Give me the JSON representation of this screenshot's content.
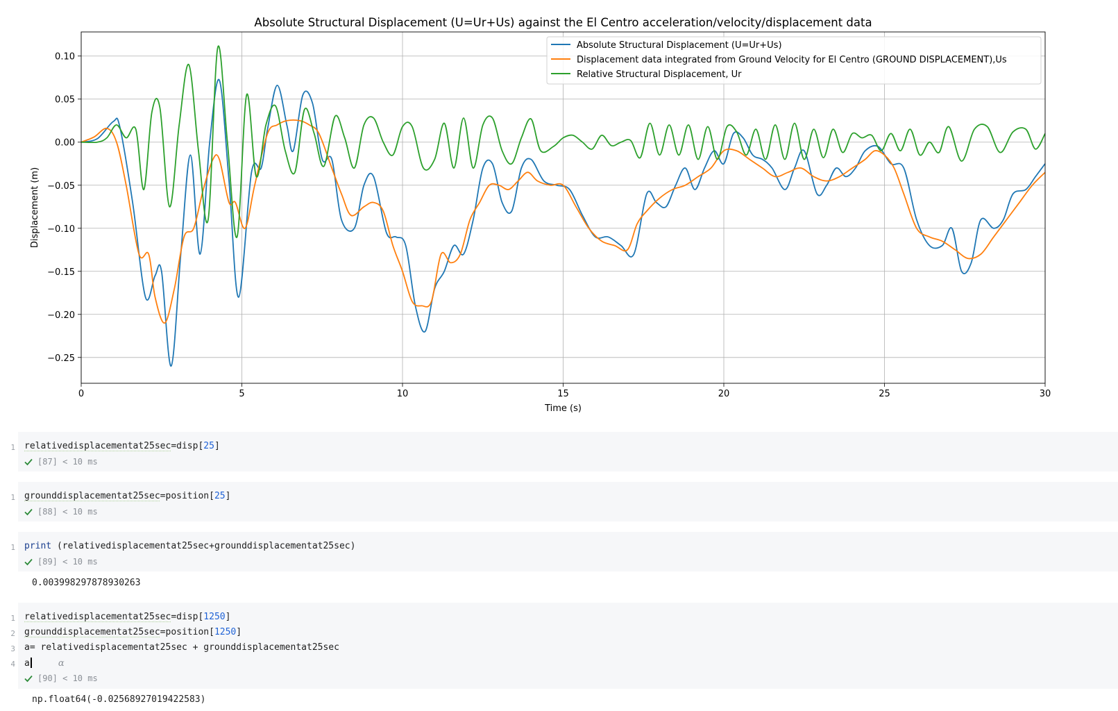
{
  "chart_data": {
    "type": "line",
    "title": "Absolute Structural Displacement (U=Ur+Us) against the El Centro acceleration/velocity/displacement data",
    "xlabel": "Time (s)",
    "ylabel": "Displacement (m)",
    "xlim": [
      0,
      30
    ],
    "ylim": [
      -0.28,
      0.128
    ],
    "xticks": [
      0,
      5,
      10,
      15,
      20,
      25,
      30
    ],
    "xtick_labels": [
      "0",
      "5",
      "10",
      "15",
      "20",
      "25",
      "30"
    ],
    "yticks": [
      0.1,
      0.05,
      0.0,
      -0.05,
      -0.1,
      -0.15,
      -0.2,
      -0.25
    ],
    "ytick_labels": [
      "0.10",
      "0.05",
      "0.00",
      "−0.05",
      "−0.10",
      "−0.15",
      "−0.20",
      "−0.25"
    ],
    "grid": true,
    "legend_position": "upper right",
    "series": [
      {
        "name": "Absolute Structural Displacement (U=Ur+Us)",
        "color": "#1f77b4",
        "x": [
          0,
          0.5,
          1.0,
          1.2,
          1.6,
          2.0,
          2.3,
          2.5,
          2.8,
          3.1,
          3.4,
          3.7,
          4.0,
          4.3,
          4.6,
          4.9,
          5.3,
          5.6,
          5.8,
          6.1,
          6.4,
          6.6,
          6.9,
          7.2,
          7.5,
          7.8,
          8.1,
          8.5,
          8.8,
          9.1,
          9.5,
          9.8,
          10.1,
          10.4,
          10.7,
          11.0,
          11.3,
          11.6,
          11.9,
          12.2,
          12.5,
          12.8,
          13.1,
          13.4,
          13.7,
          14.0,
          14.4,
          14.8,
          15.2,
          15.6,
          16.0,
          16.4,
          16.8,
          17.2,
          17.6,
          17.9,
          18.2,
          18.5,
          18.8,
          19.1,
          19.4,
          19.7,
          20.0,
          20.3,
          20.6,
          20.9,
          21.2,
          21.5,
          21.9,
          22.2,
          22.5,
          22.9,
          23.2,
          23.5,
          23.8,
          24.1,
          24.4,
          24.8,
          25.2,
          25.6,
          26.0,
          26.4,
          26.8,
          27.1,
          27.4,
          27.7,
          28.0,
          28.4,
          28.7,
          29.0,
          29.4,
          29.7,
          30.0
        ],
        "values": [
          0,
          0.004,
          0.024,
          0.018,
          -0.07,
          -0.18,
          -0.155,
          -0.15,
          -0.26,
          -0.13,
          -0.015,
          -0.13,
          0.0,
          0.072,
          -0.045,
          -0.18,
          -0.035,
          -0.03,
          0.015,
          0.066,
          0.02,
          -0.01,
          0.055,
          0.045,
          -0.02,
          -0.02,
          -0.09,
          -0.1,
          -0.05,
          -0.04,
          -0.105,
          -0.11,
          -0.12,
          -0.19,
          -0.22,
          -0.17,
          -0.15,
          -0.12,
          -0.13,
          -0.09,
          -0.03,
          -0.025,
          -0.07,
          -0.08,
          -0.03,
          -0.02,
          -0.045,
          -0.05,
          -0.055,
          -0.085,
          -0.11,
          -0.11,
          -0.12,
          -0.13,
          -0.06,
          -0.07,
          -0.075,
          -0.05,
          -0.03,
          -0.055,
          -0.03,
          -0.01,
          -0.025,
          0.01,
          0.005,
          -0.015,
          -0.02,
          -0.03,
          -0.055,
          -0.03,
          -0.01,
          -0.06,
          -0.05,
          -0.03,
          -0.04,
          -0.03,
          -0.01,
          -0.005,
          -0.025,
          -0.03,
          -0.09,
          -0.12,
          -0.12,
          -0.1,
          -0.15,
          -0.14,
          -0.09,
          -0.1,
          -0.09,
          -0.06,
          -0.055,
          -0.04,
          -0.025
        ]
      },
      {
        "name": "Displacement data integrated from Ground Velocity for El Centro (GROUND DISPLACEMENT),Us",
        "color": "#ff7f0e",
        "x": [
          0,
          0.4,
          0.8,
          1.1,
          1.4,
          1.8,
          2.1,
          2.3,
          2.6,
          2.9,
          3.2,
          3.5,
          3.8,
          4.1,
          4.3,
          4.6,
          4.8,
          5.1,
          5.4,
          5.8,
          6.1,
          6.4,
          6.8,
          7.1,
          7.4,
          7.8,
          8.1,
          8.4,
          8.8,
          9.1,
          9.4,
          9.7,
          10.0,
          10.3,
          10.6,
          10.9,
          11.2,
          11.5,
          11.8,
          12.1,
          12.4,
          12.7,
          13.0,
          13.3,
          13.6,
          13.9,
          14.2,
          14.6,
          15.0,
          15.4,
          15.8,
          16.2,
          16.6,
          17.0,
          17.3,
          17.6,
          18.0,
          18.4,
          18.8,
          19.2,
          19.6,
          20.0,
          20.4,
          20.8,
          21.2,
          21.6,
          22.0,
          22.4,
          22.8,
          23.2,
          23.6,
          24.0,
          24.4,
          24.7,
          25.0,
          25.3,
          25.6,
          26.0,
          26.4,
          26.8,
          27.2,
          27.6,
          28.0,
          28.4,
          28.8,
          29.2,
          29.6,
          30.0
        ],
        "values": [
          0,
          0.006,
          0.016,
          0.0,
          -0.05,
          -0.13,
          -0.13,
          -0.18,
          -0.21,
          -0.17,
          -0.11,
          -0.1,
          -0.055,
          -0.02,
          -0.02,
          -0.07,
          -0.07,
          -0.1,
          -0.05,
          0.01,
          0.02,
          0.025,
          0.025,
          0.02,
          0.01,
          -0.03,
          -0.06,
          -0.085,
          -0.075,
          -0.07,
          -0.08,
          -0.12,
          -0.15,
          -0.185,
          -0.19,
          -0.185,
          -0.13,
          -0.14,
          -0.13,
          -0.09,
          -0.07,
          -0.05,
          -0.05,
          -0.055,
          -0.045,
          -0.035,
          -0.045,
          -0.05,
          -0.05,
          -0.075,
          -0.1,
          -0.115,
          -0.12,
          -0.125,
          -0.095,
          -0.08,
          -0.065,
          -0.055,
          -0.05,
          -0.04,
          -0.03,
          -0.01,
          -0.01,
          -0.02,
          -0.03,
          -0.04,
          -0.035,
          -0.03,
          -0.04,
          -0.045,
          -0.04,
          -0.03,
          -0.02,
          -0.01,
          -0.015,
          -0.03,
          -0.06,
          -0.1,
          -0.11,
          -0.115,
          -0.125,
          -0.135,
          -0.13,
          -0.11,
          -0.09,
          -0.07,
          -0.05,
          -0.035
        ]
      },
      {
        "name": "Relative Structural Displacement, Ur",
        "color": "#2ca02c",
        "x": [
          0,
          0.5,
          0.8,
          1.1,
          1.4,
          1.7,
          1.95,
          2.2,
          2.45,
          2.75,
          3.05,
          3.35,
          3.65,
          3.95,
          4.25,
          4.55,
          4.85,
          5.15,
          5.45,
          5.75,
          6.05,
          6.35,
          6.65,
          6.95,
          7.25,
          7.55,
          7.9,
          8.2,
          8.5,
          8.8,
          9.1,
          9.4,
          9.7,
          10.0,
          10.3,
          10.65,
          11.0,
          11.3,
          11.6,
          11.9,
          12.2,
          12.5,
          12.8,
          13.1,
          13.4,
          13.7,
          14.0,
          14.3,
          14.7,
          15.0,
          15.3,
          15.6,
          15.9,
          16.2,
          16.5,
          16.8,
          17.1,
          17.4,
          17.7,
          18.0,
          18.3,
          18.6,
          18.9,
          19.2,
          19.5,
          19.8,
          20.1,
          20.4,
          20.7,
          21.0,
          21.3,
          21.6,
          21.9,
          22.2,
          22.5,
          22.8,
          23.1,
          23.4,
          23.7,
          24.0,
          24.3,
          24.6,
          24.9,
          25.2,
          25.5,
          25.8,
          26.1,
          26.4,
          26.7,
          27.0,
          27.4,
          27.8,
          28.2,
          28.6,
          29.0,
          29.4,
          29.7,
          30.0
        ],
        "values": [
          0,
          0,
          0.005,
          0.02,
          0.005,
          0.015,
          -0.055,
          0.035,
          0.04,
          -0.075,
          0.02,
          0.09,
          -0.01,
          -0.09,
          0.11,
          0.0,
          -0.11,
          0.055,
          -0.04,
          0.02,
          0.042,
          -0.01,
          -0.035,
          0.038,
          0.01,
          -0.028,
          0.03,
          0.005,
          -0.03,
          0.02,
          0.028,
          0.0,
          -0.015,
          0.018,
          0.018,
          -0.03,
          -0.02,
          0.022,
          -0.03,
          0.028,
          -0.03,
          0.02,
          0.028,
          -0.01,
          -0.025,
          0.005,
          0.027,
          -0.01,
          -0.005,
          0.005,
          0.008,
          0.0,
          -0.008,
          0.008,
          -0.004,
          0.0,
          0.002,
          -0.018,
          0.022,
          -0.015,
          0.02,
          -0.015,
          0.02,
          -0.02,
          0.018,
          -0.02,
          0.018,
          0.012,
          -0.015,
          0.015,
          -0.02,
          0.02,
          -0.02,
          0.022,
          -0.02,
          0.015,
          -0.018,
          0.015,
          -0.012,
          0.01,
          0.005,
          0.008,
          -0.01,
          0.01,
          -0.01,
          0.015,
          -0.015,
          0.0,
          -0.012,
          0.018,
          -0.022,
          0.015,
          0.018,
          -0.012,
          0.012,
          0.015,
          -0.008,
          0.01
        ]
      }
    ]
  },
  "cells": [
    {
      "line_numbers": [
        "1"
      ],
      "code": [
        {
          "ident": "relativedisplacementat25sec",
          "rest": "=disp[",
          "num": "25",
          "tail": "]"
        }
      ],
      "status": "[87] < 10 ms"
    },
    {
      "line_numbers": [
        "1"
      ],
      "code": [
        {
          "ident": "grounddisplacementat25sec",
          "rest": "=position[",
          "num": "25",
          "tail": "]"
        }
      ],
      "status": "[88] < 10 ms"
    },
    {
      "line_numbers": [
        "1"
      ],
      "code": [
        {
          "kw": "print",
          "rest": " (relativedisplacementat25sec+grounddisplacementat25sec)"
        }
      ],
      "status": "[89] < 10 ms",
      "output": "0.003998297878930263"
    },
    {
      "line_numbers": [
        "1",
        "2",
        "3",
        "4"
      ],
      "code": [
        {
          "ident": "relativedisplacementat25sec",
          "rest": "=disp[",
          "num": "1250",
          "tail": "]"
        },
        {
          "ident": "grounddisplacementat25sec",
          "rest": "=position[",
          "num": "1250",
          "tail": "]"
        },
        {
          "text": "a= relativedisplacementat25sec + grounddisplacementat25sec"
        },
        {
          "text": "a",
          "hint": "α"
        }
      ],
      "status": "[90] < 10 ms",
      "output": "np.float64(-0.02568927019422583)"
    }
  ],
  "colors": {
    "check": "#2e8b3a",
    "cell_background": "#f6f7f9"
  },
  "icons": {
    "status_icon": "check-icon"
  }
}
